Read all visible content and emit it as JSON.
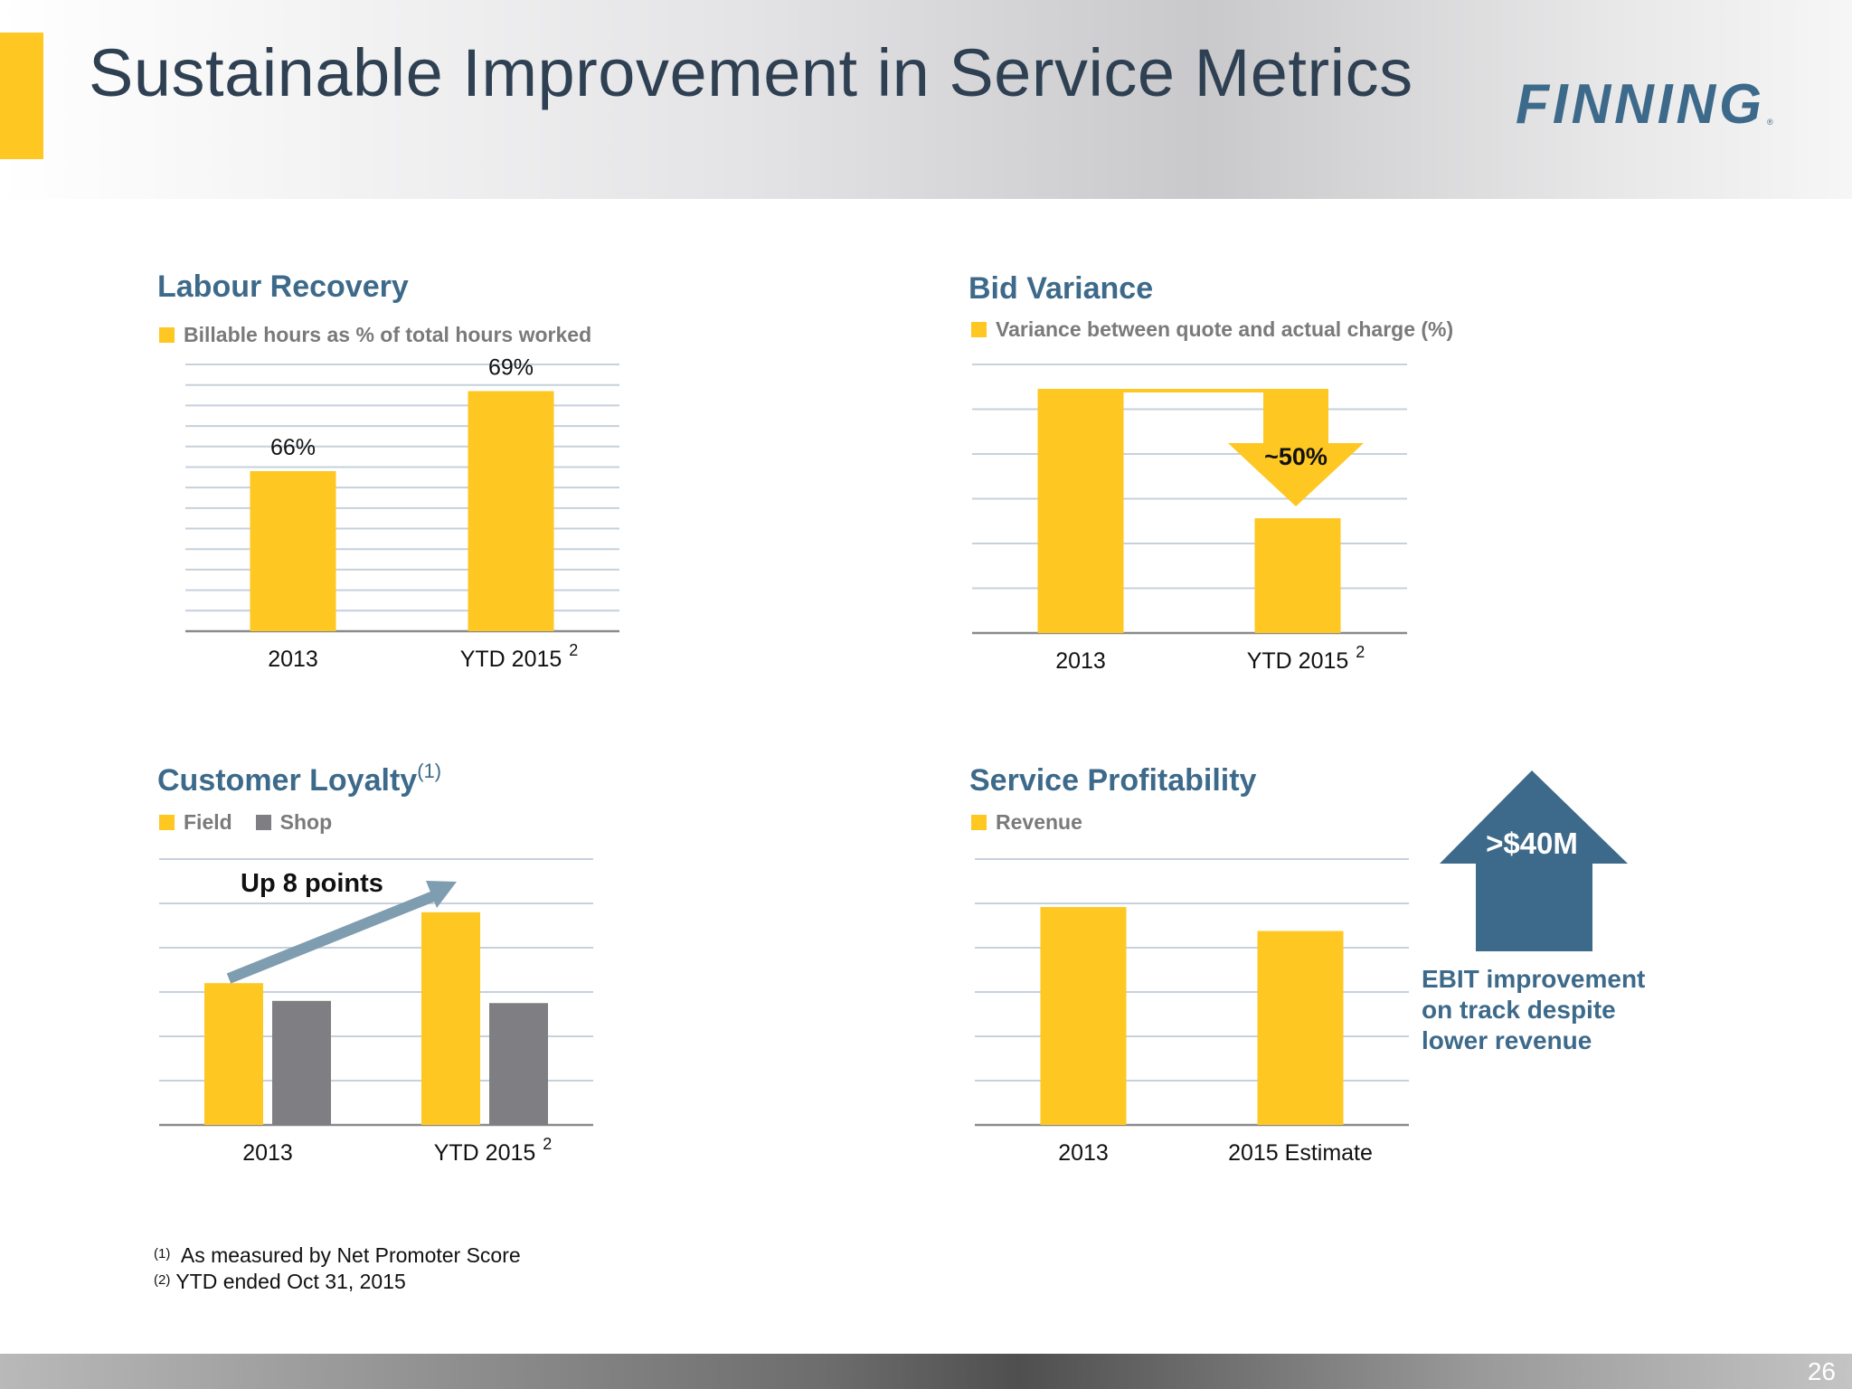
{
  "slide": {
    "title": "Sustainable Improvement in Service Metrics",
    "logo_text": "FINNING",
    "page_number": "26",
    "footnotes": [
      {
        "marker": "(1)",
        "text": "As measured by Net Promoter Score"
      },
      {
        "marker": "(2)",
        "text": "YTD ended Oct 31, 2015"
      }
    ]
  },
  "colors": {
    "yellow": "#fec722",
    "gray": "#7f7f83",
    "blue": "#3d6a8a",
    "arrow_gray": "#7f9db0",
    "grid": "#c6d1dc"
  },
  "chart_data": [
    {
      "type": "bar",
      "title": "Labour Recovery",
      "legend": [
        "Billable hours as % of total hours worked"
      ],
      "categories": [
        "2013",
        "YTD 2015"
      ],
      "category_superscripts": [
        "",
        "2"
      ],
      "values": [
        66,
        69
      ],
      "data_labels": [
        "66%",
        "69%"
      ],
      "ylim": [
        60,
        70
      ],
      "grid": true
    },
    {
      "type": "bar",
      "title": "Bid Variance",
      "legend": [
        "Variance between quote and actual charge (%)"
      ],
      "categories": [
        "2013",
        "YTD 2015"
      ],
      "category_superscripts": [
        "",
        "2"
      ],
      "values": [
        100,
        47
      ],
      "ylim": [
        0,
        110
      ],
      "grid": true,
      "annotation": "~50%"
    },
    {
      "type": "bar",
      "title": "Customer Loyalty",
      "title_superscript": "(1)",
      "categories": [
        "2013",
        "YTD 2015"
      ],
      "category_superscripts": [
        "",
        "2"
      ],
      "series": [
        {
          "name": "Field",
          "values": [
            32,
            48
          ]
        },
        {
          "name": "Shop",
          "values": [
            28,
            27.5
          ]
        }
      ],
      "ylim": [
        0,
        60
      ],
      "grid": true,
      "annotation": "Up 8 points"
    },
    {
      "type": "bar",
      "title": "Service Profitability",
      "legend": [
        "Revenue"
      ],
      "categories": [
        "2013",
        "2015 Estimate"
      ],
      "category_superscripts": [
        "",
        ""
      ],
      "values": [
        100,
        89
      ],
      "ylim": [
        0,
        122
      ],
      "grid": true,
      "annotation": ">$40M",
      "note": "EBIT improvement on track despite lower revenue"
    }
  ]
}
